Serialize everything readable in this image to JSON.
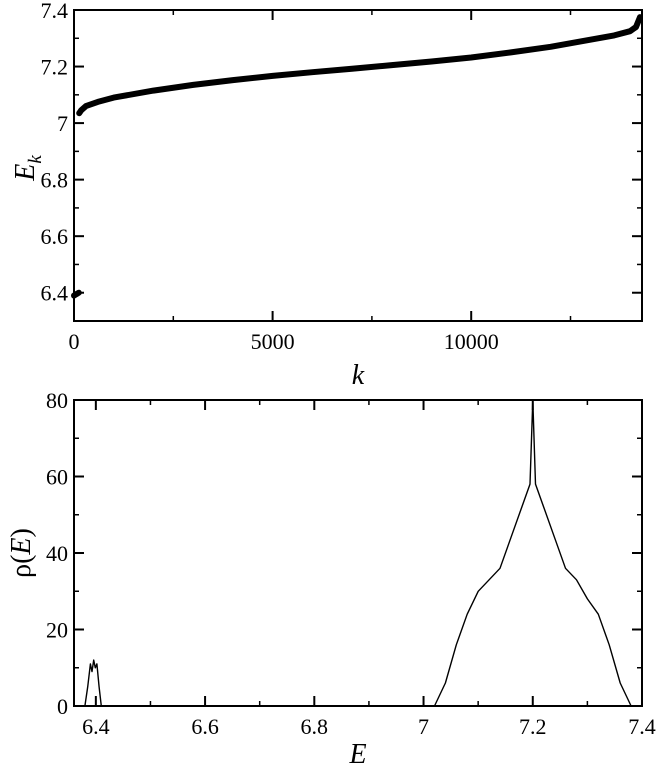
{
  "chart_data": [
    {
      "type": "line",
      "title": "",
      "xlabel": "k",
      "ylabel": "E",
      "ylabel_subscript": "k",
      "xlim": [
        0,
        14300
      ],
      "ylim": [
        6.3,
        7.4
      ],
      "xticks": [
        0,
        5000,
        10000
      ],
      "xtick_labels": [
        "0",
        "5000",
        "10000"
      ],
      "yticks": [
        6.4,
        6.6,
        6.8,
        7.0,
        7.2,
        7.4
      ],
      "ytick_labels": [
        "6.4",
        "6.6",
        "6.8",
        "7",
        "7.2",
        "7.4"
      ],
      "grid": false,
      "series": [
        {
          "x": [
            0,
            60,
            120,
            130,
            180,
            300,
            600,
            1000,
            2000,
            3000,
            4000,
            5000,
            6000,
            7000,
            8000,
            9000,
            10000,
            11000,
            12000,
            13000,
            13600,
            14000,
            14150,
            14250
          ],
          "y": [
            6.39,
            6.395,
            6.4,
            7.035,
            7.045,
            7.06,
            7.075,
            7.09,
            7.115,
            7.135,
            7.152,
            7.167,
            7.18,
            7.192,
            7.205,
            7.218,
            7.232,
            7.25,
            7.27,
            7.295,
            7.31,
            7.325,
            7.34,
            7.375
          ]
        }
      ]
    },
    {
      "type": "line",
      "title": "",
      "xlabel": "E",
      "ylabel_prefix": "ρ(",
      "ylabel_var": "E",
      "ylabel_suffix": ")",
      "xlim": [
        6.36,
        7.4
      ],
      "ylim": [
        0,
        80
      ],
      "xticks": [
        6.4,
        6.6,
        6.8,
        7.0,
        7.2,
        7.4
      ],
      "xtick_labels": [
        "6.4",
        "6.6",
        "6.8",
        "7",
        "7.2",
        "7.4"
      ],
      "yticks": [
        0,
        20,
        40,
        60,
        80
      ],
      "ytick_labels": [
        "0",
        "20",
        "40",
        "60",
        "80"
      ],
      "grid": false,
      "series": [
        {
          "x": [
            6.38,
            6.385,
            6.39,
            6.393,
            6.396,
            6.399,
            6.402,
            6.406,
            6.41,
            7.02,
            7.04,
            7.06,
            7.08,
            7.1,
            7.12,
            7.14,
            7.16,
            7.18,
            7.195,
            7.2,
            7.205,
            7.22,
            7.24,
            7.26,
            7.28,
            7.3,
            7.32,
            7.34,
            7.36,
            7.38
          ],
          "y": [
            0,
            5,
            11,
            9,
            12,
            10,
            11,
            5,
            0,
            0,
            6,
            16,
            24,
            30,
            33,
            36,
            44,
            52,
            58,
            80,
            58,
            52,
            44,
            36,
            33,
            28,
            24,
            16,
            6,
            0
          ]
        }
      ]
    }
  ]
}
